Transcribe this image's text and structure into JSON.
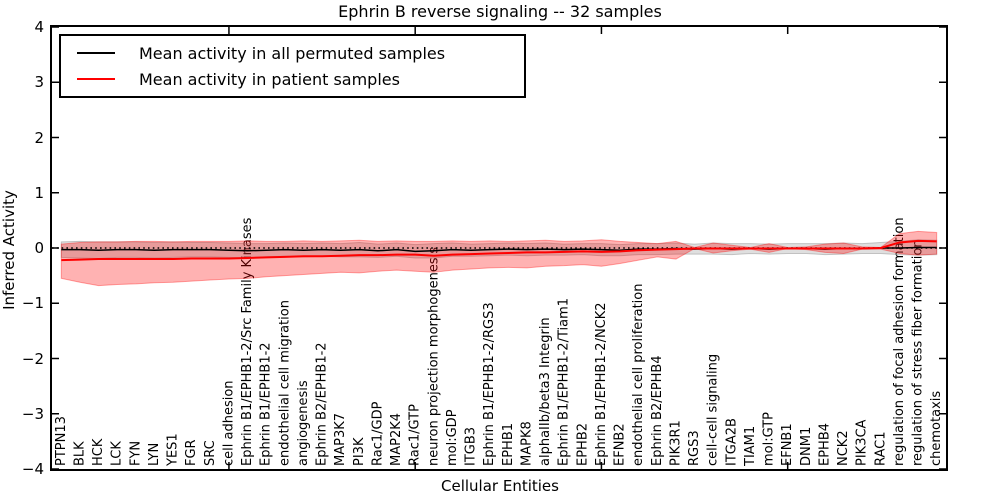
{
  "title": "Ephrin B reverse signaling -- 32 samples",
  "axes": {
    "xlabel": "Cellular Entities",
    "ylabel": "Inferred Activity",
    "yticks": [
      "4",
      "3",
      "2",
      "1",
      "0",
      "−1",
      "−2",
      "−3",
      "−4"
    ]
  },
  "legend": {
    "items": [
      {
        "label": "Mean activity in all permuted samples",
        "color": "#000000"
      },
      {
        "label": "Mean activity in patient samples",
        "color": "#ff0000"
      }
    ]
  },
  "chart_data": {
    "type": "line",
    "title": "Ephrin B reverse signaling -- 32 samples",
    "xlabel": "Cellular Entities",
    "ylabel": "Inferred Activity",
    "ylim": [
      -4,
      4
    ],
    "grid": false,
    "legend_position": "upper left",
    "zero_line_style": "dotted",
    "x_tick_indices": [
      9,
      19,
      29,
      39
    ],
    "categories": [
      "PTPN13",
      "BLK",
      "HCK",
      "LCK",
      "FYN",
      "LYN",
      "YES1",
      "FGR",
      "SRC",
      "cell adhesion",
      "Ephrin B1/EPHB1-2/Src Family Kinases",
      "Ephrin B1/EPHB1-2",
      "endothelial cell migration",
      "angiogenesis",
      "Ephrin B2/EPHB1-2",
      "MAP3K7",
      "PI3K",
      "Rac1/GDP",
      "MAP2K4",
      "Rac1/GTP",
      "neuron projection morphogenesis",
      "mol:GDP",
      "ITGB3",
      "Ephrin B1/EPHB1-2/RGS3",
      "EPHB1",
      "MAPK8",
      "alphaIIb/beta3 Integrin",
      "Ephrin B1/EPHB1-2/Tiam1",
      "EPHB2",
      "Ephrin B1/EPHB1-2/NCK2",
      "EFNB2",
      "endothelial cell proliferation",
      "Ephrin B2/EPHB4",
      "PIK3R1",
      "RGS3",
      "cell-cell signaling",
      "ITGA2B",
      "TIAM1",
      "mol:GTP",
      "EFNB1",
      "DNM1",
      "EPHB4",
      "NCK2",
      "PIK3CA",
      "RAC1",
      "regulation of focal adhesion formation",
      "regulation of stress fiber formation",
      "chemotaxis"
    ],
    "series": [
      {
        "name": "Mean activity in all permuted samples",
        "color": "#000000",
        "values": [
          -0.03,
          -0.03,
          -0.04,
          -0.03,
          -0.03,
          -0.04,
          -0.03,
          -0.03,
          -0.03,
          -0.04,
          -0.05,
          -0.04,
          -0.03,
          -0.04,
          -0.03,
          -0.04,
          -0.03,
          -0.05,
          -0.03,
          -0.06,
          -0.05,
          -0.03,
          -0.04,
          -0.03,
          -0.02,
          -0.03,
          -0.02,
          -0.03,
          -0.02,
          -0.03,
          -0.04,
          -0.02,
          -0.02,
          -0.01,
          -0.02,
          -0.01,
          -0.02,
          -0.01,
          -0.02,
          -0.01,
          -0.01,
          -0.02,
          -0.01,
          -0.01,
          0.0,
          0.0,
          0.01,
          0.01
        ],
        "band_half_width": [
          0.14,
          0.15,
          0.15,
          0.14,
          0.14,
          0.14,
          0.14,
          0.13,
          0.13,
          0.13,
          0.13,
          0.12,
          0.12,
          0.12,
          0.12,
          0.12,
          0.13,
          0.12,
          0.12,
          0.12,
          0.13,
          0.12,
          0.11,
          0.11,
          0.11,
          0.11,
          0.11,
          0.1,
          0.1,
          0.11,
          0.1,
          0.1,
          0.1,
          0.1,
          0.09,
          0.1,
          0.1,
          0.09,
          0.09,
          0.09,
          0.09,
          0.1,
          0.1,
          0.09,
          0.1,
          0.12,
          0.14,
          0.13
        ]
      },
      {
        "name": "Mean activity in patient samples",
        "color": "#ff0000",
        "values": [
          -0.22,
          -0.21,
          -0.2,
          -0.2,
          -0.2,
          -0.2,
          -0.2,
          -0.19,
          -0.19,
          -0.19,
          -0.18,
          -0.17,
          -0.16,
          -0.15,
          -0.15,
          -0.14,
          -0.13,
          -0.13,
          -0.12,
          -0.12,
          -0.14,
          -0.12,
          -0.11,
          -0.1,
          -0.09,
          -0.08,
          -0.08,
          -0.07,
          -0.06,
          -0.07,
          -0.06,
          -0.04,
          -0.03,
          -0.02,
          -0.01,
          -0.01,
          -0.01,
          -0.01,
          -0.01,
          -0.01,
          -0.01,
          -0.01,
          -0.01,
          -0.01,
          0.0,
          0.1,
          0.13,
          0.12
        ],
        "band_upper": [
          0.07,
          0.1,
          0.11,
          0.11,
          0.12,
          0.12,
          0.11,
          0.12,
          0.12,
          0.12,
          0.13,
          0.12,
          0.12,
          0.13,
          0.12,
          0.13,
          0.14,
          0.12,
          0.13,
          0.12,
          0.12,
          0.13,
          0.12,
          0.13,
          0.12,
          0.13,
          0.14,
          0.12,
          0.13,
          0.15,
          0.12,
          0.1,
          0.08,
          0.12,
          0.01,
          0.09,
          0.05,
          0.01,
          0.08,
          0.01,
          0.02,
          0.07,
          0.09,
          0.02,
          0.01,
          0.26,
          0.3,
          0.28
        ],
        "band_lower": [
          -0.55,
          -0.62,
          -0.68,
          -0.66,
          -0.65,
          -0.63,
          -0.62,
          -0.6,
          -0.58,
          -0.56,
          -0.55,
          -0.52,
          -0.5,
          -0.48,
          -0.46,
          -0.44,
          -0.45,
          -0.42,
          -0.4,
          -0.42,
          -0.44,
          -0.4,
          -0.38,
          -0.36,
          -0.35,
          -0.36,
          -0.33,
          -0.32,
          -0.3,
          -0.33,
          -0.28,
          -0.22,
          -0.16,
          -0.2,
          -0.01,
          -0.09,
          -0.05,
          -0.02,
          -0.08,
          -0.01,
          -0.03,
          -0.08,
          -0.1,
          -0.02,
          -0.02,
          -0.1,
          -0.13,
          -0.11
        ]
      }
    ]
  }
}
